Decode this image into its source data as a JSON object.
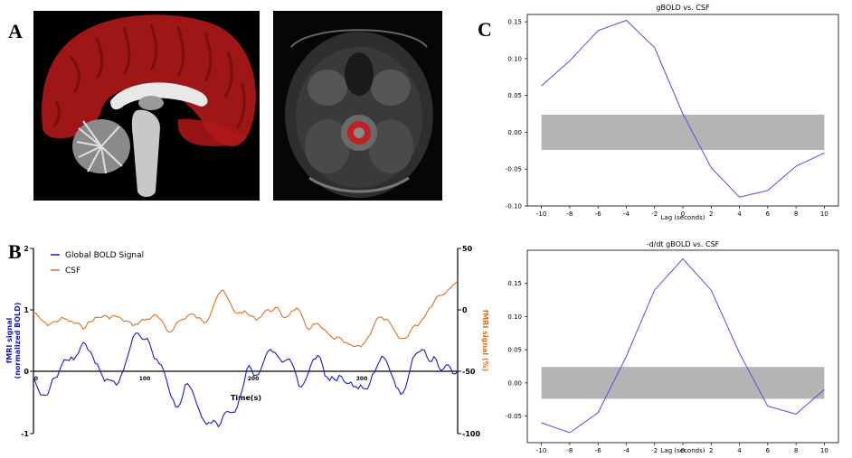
{
  "panels": {
    "a": "A",
    "b": "B",
    "c": "C"
  },
  "colors": {
    "bold": "#1a1acc",
    "csf": "#e07020",
    "line_c": "#5050e0",
    "band": "#b4b4b4",
    "overlay": "#b01818"
  },
  "panel_b": {
    "legend": [
      "Global BOLD Signal",
      "CSF"
    ],
    "xlabel": "Time(s)",
    "ylabel_left_1": "fMRI signal",
    "ylabel_left_2": "(normalized BOLD)",
    "ylabel_right": "fMRI signal (%)",
    "left_ticks": [
      "2",
      "1",
      "0",
      "-1"
    ],
    "right_ticks": [
      "50",
      "0",
      "-50",
      "-100"
    ],
    "x_ticks": [
      "0",
      "100",
      "200",
      "300"
    ]
  },
  "chart_data": [
    {
      "type": "line",
      "title": "gBOLD vs. CSF",
      "xlabel": "Lag (seconds)",
      "ylabel": "",
      "x": [
        -10,
        -8,
        -6,
        -4,
        -2,
        0,
        2,
        4,
        6,
        8,
        10
      ],
      "series": [
        {
          "values": [
            0.063,
            0.097,
            0.138,
            0.152,
            0.115,
            0.025,
            -0.048,
            -0.088,
            -0.079,
            -0.046,
            -0.028
          ]
        }
      ],
      "band": [
        -0.024,
        0.024
      ],
      "xlim": [
        -11,
        11
      ],
      "ylim": [
        -0.1,
        0.16
      ],
      "x_ticks": [
        "-10",
        "-8",
        "-6",
        "-4",
        "-2",
        "0",
        "2",
        "4",
        "6",
        "8",
        "10"
      ],
      "y_ticks": [
        "0.15",
        "0.10",
        "0.05",
        "0.00",
        "-0.05",
        "-0.10"
      ]
    },
    {
      "type": "line",
      "title": "-d/dt gBOLD vs. CSF",
      "xlabel": "Lag (seconds)",
      "ylabel": "",
      "x": [
        -10,
        -8,
        -6,
        -4,
        -2,
        0,
        2,
        4,
        6,
        8,
        10
      ],
      "series": [
        {
          "values": [
            -0.06,
            -0.075,
            -0.045,
            0.04,
            0.14,
            0.187,
            0.14,
            0.045,
            -0.035,
            -0.047,
            -0.01
          ]
        }
      ],
      "band": [
        -0.024,
        0.024
      ],
      "xlim": [
        -11,
        11
      ],
      "ylim": [
        -0.09,
        0.2
      ],
      "x_ticks": [
        "-10",
        "-8",
        "-6",
        "-4",
        "-2",
        "0",
        "2",
        "4",
        "6",
        "8",
        "10"
      ],
      "y_ticks": [
        "0.15",
        "0.10",
        "0.05",
        "0.00",
        "-0.05"
      ]
    }
  ]
}
